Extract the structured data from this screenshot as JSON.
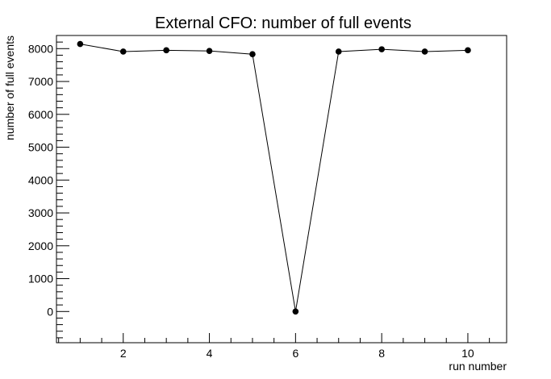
{
  "chart_data": {
    "type": "line",
    "title": "External CFO: number of full events",
    "xlabel": "run number",
    "ylabel": "number of full events",
    "xlim": [
      0.45,
      10.9
    ],
    "ylim": [
      -950,
      8400
    ],
    "xticks_major": [
      2,
      4,
      6,
      8,
      10
    ],
    "yticks_major": [
      0,
      1000,
      2000,
      3000,
      4000,
      5000,
      6000,
      7000,
      8000
    ],
    "grid": false,
    "legend": "none",
    "marker": "circle",
    "line_color": "#000000",
    "x": [
      1,
      2,
      3,
      4,
      5,
      6,
      7,
      8,
      9,
      10
    ],
    "y": [
      8140,
      7910,
      7950,
      7930,
      7830,
      0,
      7910,
      7980,
      7910,
      7950
    ]
  }
}
